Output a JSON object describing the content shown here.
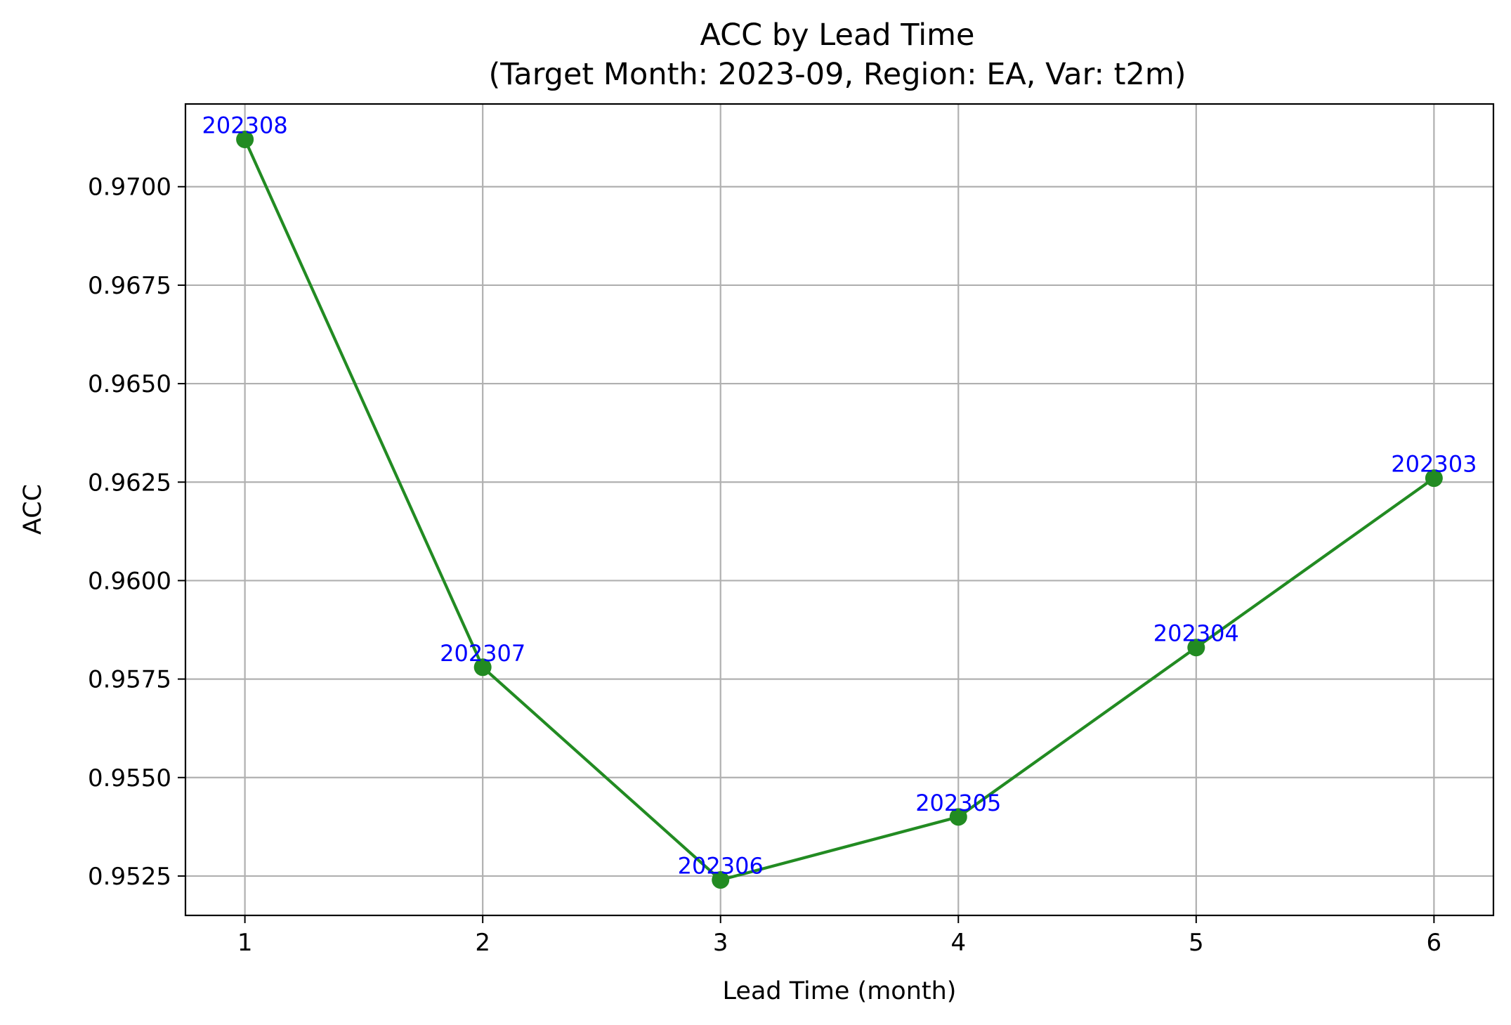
{
  "chart_data": {
    "type": "line",
    "title": "ACC by Lead Time",
    "subtitle": "(Target Month: 2023-09, Region: EA, Var: t2m)",
    "xlabel": "Lead Time (month)",
    "ylabel": "ACC",
    "x": [
      1,
      2,
      3,
      4,
      5,
      6
    ],
    "xticks": [
      "1",
      "2",
      "3",
      "4",
      "5",
      "6"
    ],
    "yticks": [
      "0.9525",
      "0.9550",
      "0.9575",
      "0.9600",
      "0.9625",
      "0.9650",
      "0.9675",
      "0.9700"
    ],
    "ytick_values": [
      0.9525,
      0.955,
      0.9575,
      0.96,
      0.9625,
      0.965,
      0.9675,
      0.97
    ],
    "xlim": [
      0.75,
      6.25
    ],
    "ylim": [
      0.9515,
      0.9721
    ],
    "grid": true,
    "series": [
      {
        "values": [
          0.9712,
          0.9578,
          0.9524,
          0.954,
          0.9583,
          0.9626
        ],
        "point_labels": [
          "202308",
          "202307",
          "202306",
          "202305",
          "202304",
          "202303"
        ],
        "color": "#228b22",
        "label_color": "#0000ff"
      }
    ]
  }
}
